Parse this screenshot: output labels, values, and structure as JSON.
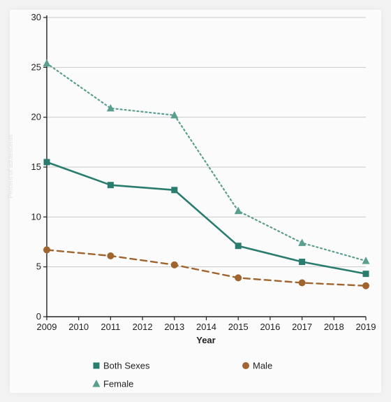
{
  "chart_data": {
    "type": "line",
    "title": "",
    "xlabel": "Year",
    "ylabel": "Percent of adolescents",
    "x": [
      2009,
      2011,
      2013,
      2015,
      2017,
      2019
    ],
    "x_ticks": [
      "2009",
      "2010",
      "2011",
      "2012",
      "2013",
      "2014",
      "2015",
      "2016",
      "2017",
      "2018",
      "2019"
    ],
    "y_ticks": [
      "0",
      "5",
      "10",
      "15",
      "20",
      "25",
      "30"
    ],
    "xlim": [
      2009,
      2019
    ],
    "ylim": [
      0,
      30
    ],
    "grid": true,
    "legend_position": "bottom",
    "series": [
      {
        "name": "Both Sexes",
        "values": [
          15.5,
          13.2,
          12.7,
          7.1,
          5.5,
          4.3
        ],
        "color": "#2a7c6f",
        "marker": "square",
        "line_style": "solid"
      },
      {
        "name": "Male",
        "values": [
          6.7,
          6.1,
          5.2,
          3.9,
          3.4,
          3.1
        ],
        "color": "#a0642e",
        "marker": "circle",
        "line_style": "dashed"
      },
      {
        "name": "Female",
        "values": [
          25.4,
          20.9,
          20.2,
          10.6,
          7.4,
          5.6
        ],
        "color": "#5a9e8e",
        "marker": "triangle",
        "line_style": "dotted"
      }
    ]
  }
}
